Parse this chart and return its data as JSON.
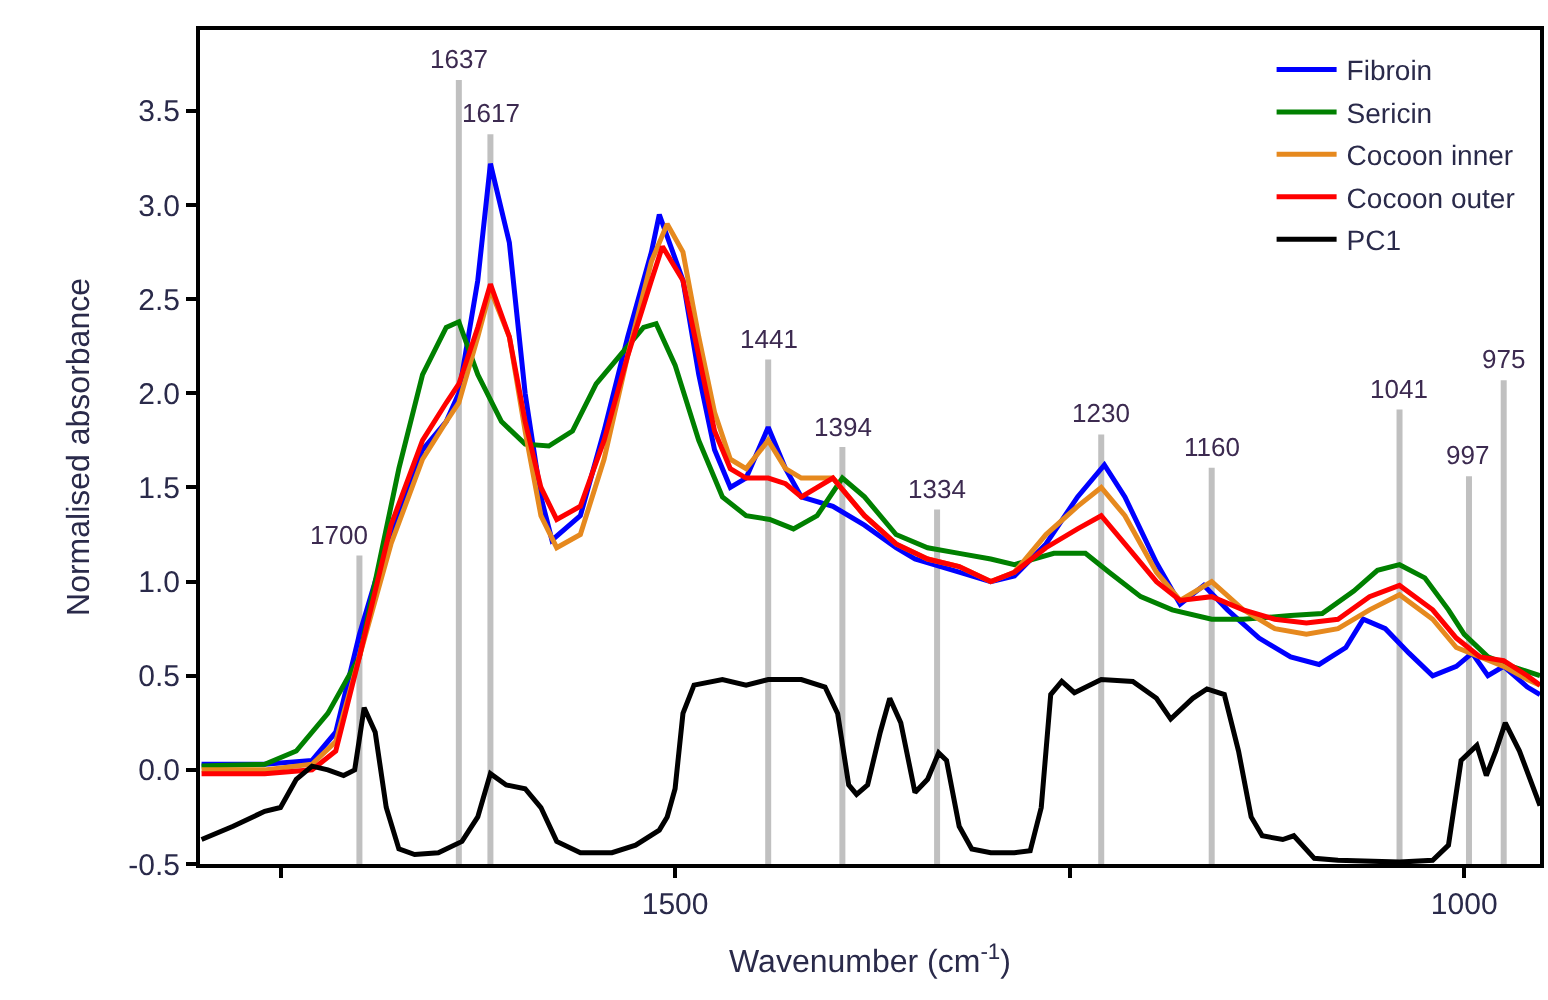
{
  "chart_data": {
    "type": "line",
    "xlabel": "Wavenumber (cm$^{-1}$)",
    "ylabel": "Normalised absorbance",
    "xlim": [
      1801,
      952
    ],
    "xticks": [
      {
        "value": 1750,
        "label": null
      },
      1500,
      {
        "value": 1250,
        "label": null
      },
      1000
    ],
    "ylim": [
      -0.5,
      3.93
    ],
    "yticks": [
      -0.5,
      {
        "value": 0,
        "label": "0.0"
      },
      0.5,
      {
        "value": 1,
        "label": "1.0"
      },
      1.5,
      {
        "value": 2,
        "label": "2.0"
      },
      2.5,
      {
        "value": 3,
        "label": "3.0"
      },
      3.5
    ],
    "grid": false,
    "legend": "top right",
    "marker": "none",
    "line_style": "solid",
    "series": [
      {
        "name": "Fibroin",
        "color": "#0000ff",
        "x": [
          1800,
          1760,
          1730,
          1715,
          1700,
          1690,
          1680,
          1660,
          1645,
          1637,
          1625,
          1617,
          1605,
          1595,
          1585,
          1578,
          1560,
          1545,
          1530,
          1515,
          1510,
          1495,
          1485,
          1475,
          1465,
          1455,
          1441,
          1430,
          1420,
          1400,
          1380,
          1360,
          1348,
          1320,
          1300,
          1285,
          1265,
          1245,
          1228,
          1215,
          1195,
          1180,
          1165,
          1150,
          1130,
          1110,
          1092,
          1075,
          1064,
          1050,
          1035,
          1020,
          1005,
          995,
          985,
          975,
          960,
          952
        ],
        "values": [
          0.03,
          0.03,
          0.05,
          0.2,
          0.72,
          1.0,
          1.25,
          1.7,
          1.85,
          2.0,
          2.6,
          3.22,
          2.8,
          2.0,
          1.45,
          1.22,
          1.35,
          1.8,
          2.3,
          2.75,
          2.95,
          2.6,
          2.1,
          1.7,
          1.5,
          1.55,
          1.82,
          1.6,
          1.45,
          1.4,
          1.3,
          1.18,
          1.12,
          1.05,
          1.0,
          1.03,
          1.2,
          1.45,
          1.62,
          1.45,
          1.1,
          0.88,
          0.98,
          0.85,
          0.7,
          0.6,
          0.56,
          0.65,
          0.8,
          0.75,
          0.62,
          0.5,
          0.55,
          0.62,
          0.5,
          0.55,
          0.44,
          0.4
        ]
      },
      {
        "name": "Sericin",
        "color": "#008000",
        "x": [
          1800,
          1760,
          1740,
          1720,
          1700,
          1690,
          1675,
          1660,
          1645,
          1637,
          1625,
          1610,
          1595,
          1580,
          1565,
          1550,
          1535,
          1520,
          1512,
          1500,
          1485,
          1470,
          1455,
          1440,
          1425,
          1410,
          1394,
          1380,
          1360,
          1340,
          1320,
          1300,
          1285,
          1260,
          1240,
          1225,
          1205,
          1185,
          1160,
          1140,
          1110,
          1090,
          1070,
          1055,
          1041,
          1025,
          1010,
          1000,
          985,
          970,
          952
        ],
        "values": [
          0.02,
          0.03,
          0.1,
          0.3,
          0.6,
          1.0,
          1.6,
          2.1,
          2.35,
          2.38,
          2.1,
          1.85,
          1.73,
          1.72,
          1.8,
          2.05,
          2.2,
          2.35,
          2.37,
          2.15,
          1.75,
          1.45,
          1.35,
          1.33,
          1.28,
          1.35,
          1.55,
          1.45,
          1.25,
          1.18,
          1.15,
          1.12,
          1.09,
          1.15,
          1.15,
          1.05,
          0.92,
          0.85,
          0.8,
          0.8,
          0.82,
          0.83,
          0.95,
          1.06,
          1.09,
          1.02,
          0.85,
          0.72,
          0.6,
          0.55,
          0.5
        ]
      },
      {
        "name": "Cocoon inner",
        "color": "#e6891e",
        "x": [
          1800,
          1760,
          1730,
          1715,
          1700,
          1690,
          1680,
          1660,
          1645,
          1637,
          1625,
          1617,
          1605,
          1595,
          1585,
          1575,
          1560,
          1545,
          1530,
          1515,
          1505,
          1495,
          1485,
          1475,
          1465,
          1455,
          1441,
          1430,
          1420,
          1400,
          1380,
          1360,
          1340,
          1320,
          1300,
          1285,
          1265,
          1245,
          1230,
          1215,
          1195,
          1180,
          1160,
          1140,
          1120,
          1100,
          1080,
          1060,
          1041,
          1020,
          1005,
          990,
          975,
          960,
          952
        ],
        "values": [
          0.0,
          0.0,
          0.03,
          0.15,
          0.6,
          0.9,
          1.2,
          1.65,
          1.85,
          1.95,
          2.3,
          2.55,
          2.3,
          1.8,
          1.35,
          1.18,
          1.25,
          1.65,
          2.2,
          2.7,
          2.9,
          2.75,
          2.3,
          1.9,
          1.65,
          1.6,
          1.75,
          1.6,
          1.55,
          1.55,
          1.35,
          1.2,
          1.12,
          1.08,
          1.0,
          1.05,
          1.25,
          1.4,
          1.5,
          1.35,
          1.05,
          0.9,
          1.0,
          0.85,
          0.75,
          0.72,
          0.75,
          0.85,
          0.93,
          0.8,
          0.65,
          0.6,
          0.55,
          0.48,
          0.45
        ]
      },
      {
        "name": "Cocoon outer",
        "color": "#ff0000",
        "x": [
          1800,
          1760,
          1730,
          1715,
          1700,
          1690,
          1680,
          1660,
          1645,
          1637,
          1625,
          1617,
          1605,
          1595,
          1585,
          1575,
          1560,
          1545,
          1530,
          1515,
          1508,
          1495,
          1485,
          1475,
          1465,
          1455,
          1441,
          1430,
          1420,
          1400,
          1380,
          1360,
          1340,
          1320,
          1300,
          1285,
          1265,
          1245,
          1230,
          1215,
          1195,
          1180,
          1160,
          1140,
          1120,
          1100,
          1080,
          1060,
          1041,
          1020,
          1005,
          990,
          975,
          960,
          952
        ],
        "values": [
          -0.02,
          -0.02,
          0.0,
          0.1,
          0.6,
          0.95,
          1.3,
          1.75,
          1.95,
          2.05,
          2.35,
          2.58,
          2.3,
          1.85,
          1.5,
          1.33,
          1.4,
          1.75,
          2.2,
          2.6,
          2.78,
          2.6,
          2.2,
          1.8,
          1.6,
          1.55,
          1.55,
          1.52,
          1.45,
          1.55,
          1.35,
          1.2,
          1.12,
          1.08,
          1.0,
          1.05,
          1.18,
          1.28,
          1.35,
          1.2,
          1.0,
          0.9,
          0.92,
          0.85,
          0.8,
          0.78,
          0.8,
          0.92,
          0.98,
          0.85,
          0.7,
          0.6,
          0.58,
          0.5,
          0.45
        ]
      },
      {
        "name": "PC1",
        "color": "#000000",
        "x": [
          1800,
          1780,
          1760,
          1750,
          1740,
          1730,
          1720,
          1710,
          1703,
          1697,
          1690,
          1683,
          1675,
          1665,
          1650,
          1635,
          1625,
          1617,
          1607,
          1595,
          1585,
          1575,
          1560,
          1540,
          1525,
          1510,
          1505,
          1500,
          1495,
          1488,
          1470,
          1455,
          1441,
          1420,
          1405,
          1397,
          1390,
          1385,
          1378,
          1370,
          1364,
          1357,
          1348,
          1340,
          1333,
          1328,
          1320,
          1312,
          1300,
          1285,
          1275,
          1268,
          1262,
          1255,
          1247,
          1230,
          1210,
          1195,
          1186,
          1172,
          1163,
          1152,
          1143,
          1135,
          1128,
          1115,
          1108,
          1095,
          1080,
          1041,
          1020,
          1010,
          1002,
          992,
          986,
          980,
          974,
          965,
          952
        ],
        "values": [
          -0.37,
          -0.3,
          -0.22,
          -0.2,
          -0.05,
          0.02,
          0.0,
          -0.03,
          0.0,
          0.33,
          0.2,
          -0.2,
          -0.42,
          -0.45,
          -0.44,
          -0.38,
          -0.25,
          -0.02,
          -0.08,
          -0.1,
          -0.2,
          -0.38,
          -0.44,
          -0.44,
          -0.4,
          -0.32,
          -0.25,
          -0.1,
          0.3,
          0.45,
          0.48,
          0.45,
          0.48,
          0.48,
          0.44,
          0.3,
          -0.08,
          -0.13,
          -0.08,
          0.2,
          0.38,
          0.25,
          -0.12,
          -0.05,
          0.09,
          0.05,
          -0.3,
          -0.42,
          -0.44,
          -0.44,
          -0.43,
          -0.2,
          0.4,
          0.47,
          0.41,
          0.48,
          0.47,
          0.38,
          0.27,
          0.38,
          0.43,
          0.4,
          0.1,
          -0.25,
          -0.35,
          -0.37,
          -0.35,
          -0.47,
          -0.48,
          -0.49,
          -0.48,
          -0.4,
          0.05,
          0.13,
          -0.03,
          0.1,
          0.25,
          0.1,
          -0.19
        ]
      }
    ],
    "ref_lines": [
      {
        "axis": "x",
        "value": 1700,
        "label": "1700",
        "color": "#c0c0c0"
      },
      {
        "axis": "x",
        "value": 1637,
        "label": "1637",
        "color": "#c0c0c0"
      },
      {
        "axis": "x",
        "value": 1617,
        "label": "1617",
        "color": "#c0c0c0"
      },
      {
        "axis": "x",
        "value": 1441,
        "label": "1441",
        "color": "#c0c0c0"
      },
      {
        "axis": "x",
        "value": 1394,
        "label": "1394",
        "color": "#c0c0c0"
      },
      {
        "axis": "x",
        "value": 1334,
        "label": "1334",
        "color": "#c0c0c0"
      },
      {
        "axis": "x",
        "value": 1230,
        "label": "1230",
        "color": "#c0c0c0"
      },
      {
        "axis": "x",
        "value": 1160,
        "label": "1160",
        "color": "#c0c0c0"
      },
      {
        "axis": "x",
        "value": 1041,
        "label": "1041",
        "color": "#c0c0c0"
      },
      {
        "axis": "x",
        "value": 997,
        "label": "997",
        "color": "#c0c0c0"
      },
      {
        "axis": "x",
        "value": 975,
        "label": "975",
        "color": "#c0c0c0"
      }
    ]
  }
}
